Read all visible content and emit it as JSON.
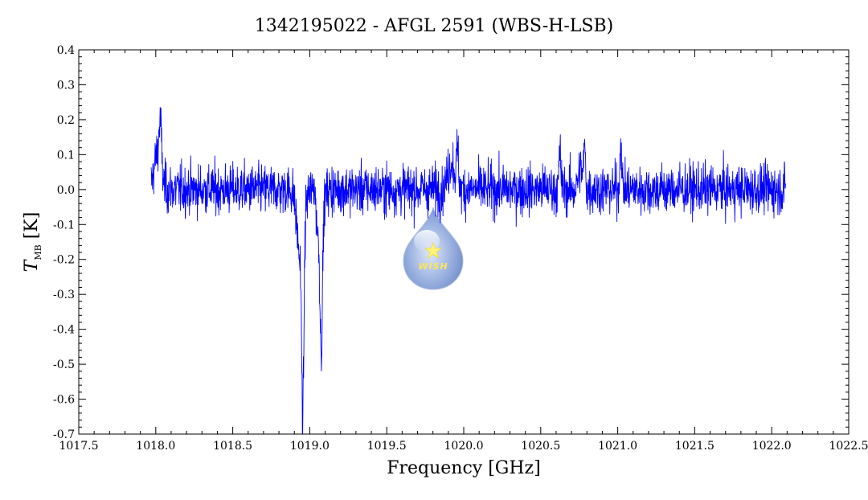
{
  "chart_data": {
    "type": "line",
    "title": "1342195022 - AFGL 2591 (WBS-H-LSB)",
    "xlabel": "Frequency [GHz]",
    "ylabel_main": "T",
    "ylabel_sub": "MB",
    "ylabel_unit": "[K]",
    "xlim": [
      1017.5,
      1022.5
    ],
    "ylim": [
      -0.7,
      0.4
    ],
    "x_ticks": [
      1017.5,
      1018.0,
      1018.5,
      1019.0,
      1019.5,
      1020.0,
      1020.5,
      1021.0,
      1021.5,
      1022.0,
      1022.5
    ],
    "x_tick_labels": [
      "1017.5",
      "1018.0",
      "1018.5",
      "1019.0",
      "1019.5",
      "1020.0",
      "1020.5",
      "1021.0",
      "1021.5",
      "1022.0",
      "1022.5"
    ],
    "y_ticks": [
      -0.7,
      -0.6,
      -0.5,
      -0.4,
      -0.3,
      -0.2,
      -0.1,
      0.0,
      0.1,
      0.2,
      0.3,
      0.4
    ],
    "y_tick_labels": [
      "-0.7",
      "-0.6",
      "-0.5",
      "-0.4",
      "-0.3",
      "-0.2",
      "-0.1",
      "0.0",
      "0.1",
      "0.2",
      "0.3",
      "0.4"
    ],
    "grid": false,
    "series": [
      {
        "color": "#0000ff",
        "x_start": 1017.97,
        "x_end": 1022.09,
        "noise_rms": 0.035,
        "features": [
          {
            "x": 1018.03,
            "y": 0.32
          },
          {
            "x": 1018.02,
            "y": 0.22
          },
          {
            "x": 1018.05,
            "y": 0.2
          },
          {
            "x": 1018.58,
            "y": 0.1
          },
          {
            "x": 1018.95,
            "y": -0.64
          },
          {
            "x": 1018.96,
            "y": -0.55
          },
          {
            "x": 1019.08,
            "y": -0.46
          },
          {
            "x": 1019.03,
            "y": 0.11
          },
          {
            "x": 1019.96,
            "y": 0.19
          },
          {
            "x": 1020.63,
            "y": 0.19
          },
          {
            "x": 1020.78,
            "y": 0.22
          },
          {
            "x": 1021.02,
            "y": 0.23
          }
        ]
      }
    ],
    "watermark_text": "WISH"
  }
}
